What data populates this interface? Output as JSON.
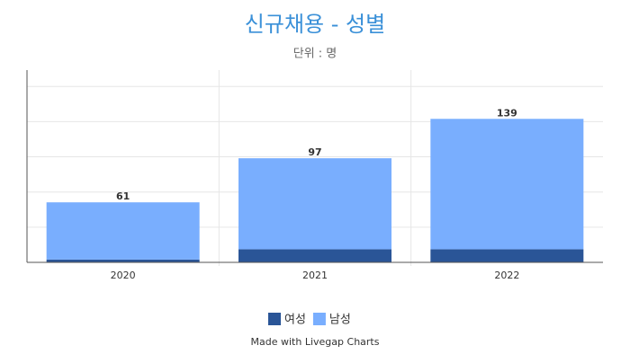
{
  "chart_data": {
    "type": "stacked-bar",
    "title": "신규채용 - 성별",
    "subtitle": "단위 : 명",
    "categories": [
      "2020",
      "2021",
      "2022"
    ],
    "series": [
      {
        "name": "여성",
        "color": "#2a5597",
        "values": [
          3,
          14,
          14
        ]
      },
      {
        "name": "남성",
        "color": "#79aefe",
        "values": [
          61,
          97,
          139
        ]
      }
    ],
    "ylim": [
      0,
      205
    ],
    "yticks": [
      37.5,
      75,
      112.5,
      150,
      187.5
    ],
    "grid": true,
    "footer": "Made with Livegap Charts"
  }
}
